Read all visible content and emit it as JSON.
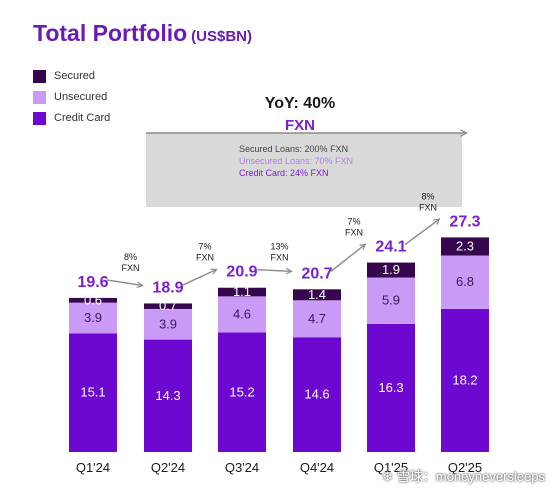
{
  "header": {
    "title": "Total Portfolio",
    "unit": "(US$BN)"
  },
  "colors": {
    "secured": "#36064f",
    "unsecured": "#c99bf7",
    "credit_card": "#6d08d1",
    "total_label": "#7b1fd1",
    "growth_box": "#d9d9d9",
    "secured_note": "#444444",
    "unsecured_note": "#b27ff0",
    "credit_note": "#7b1fd1"
  },
  "legend": [
    {
      "label": "Secured",
      "color": "#36064f"
    },
    {
      "label": "Unsecured",
      "color": "#c99bf7"
    },
    {
      "label": "Credit Card",
      "color": "#6d08d1"
    }
  ],
  "callout": {
    "headline": "YoY: 40%",
    "subhead": "FXN",
    "notes": [
      {
        "text": "Secured Loans: 200% FXN",
        "color": "#444444"
      },
      {
        "text": "Unsecured Loans: 70% FXN",
        "color": "#b27ff0"
      },
      {
        "text": "Credit Card: 24% FXN",
        "color": "#7b1fd1"
      }
    ]
  },
  "growth_labels": [
    {
      "pct": "8%",
      "fxn": "FXN"
    },
    {
      "pct": "7%",
      "fxn": "FXN"
    },
    {
      "pct": "13%",
      "fxn": "FXN"
    },
    {
      "pct": "7%",
      "fxn": "FXN"
    },
    {
      "pct": "8%",
      "fxn": "FXN"
    }
  ],
  "watermark": {
    "icon": "snowball-icon",
    "text": "雪球：moneyneversleeps"
  },
  "chart_data": {
    "type": "bar",
    "stacked": true,
    "categories": [
      "Q1'24",
      "Q2'24",
      "Q3'24",
      "Q4'24",
      "Q1'25",
      "Q2'25"
    ],
    "series": [
      {
        "name": "Credit Card",
        "values": [
          15.1,
          14.3,
          15.2,
          14.6,
          16.3,
          18.2
        ]
      },
      {
        "name": "Unsecured",
        "values": [
          3.9,
          3.9,
          4.6,
          4.7,
          5.9,
          6.8
        ]
      },
      {
        "name": "Secured",
        "values": [
          0.6,
          0.7,
          1.1,
          1.4,
          1.9,
          2.3
        ]
      }
    ],
    "totals": [
      19.6,
      18.9,
      20.9,
      20.7,
      24.1,
      27.3
    ],
    "legend_position": "top-left",
    "grid": false
  }
}
